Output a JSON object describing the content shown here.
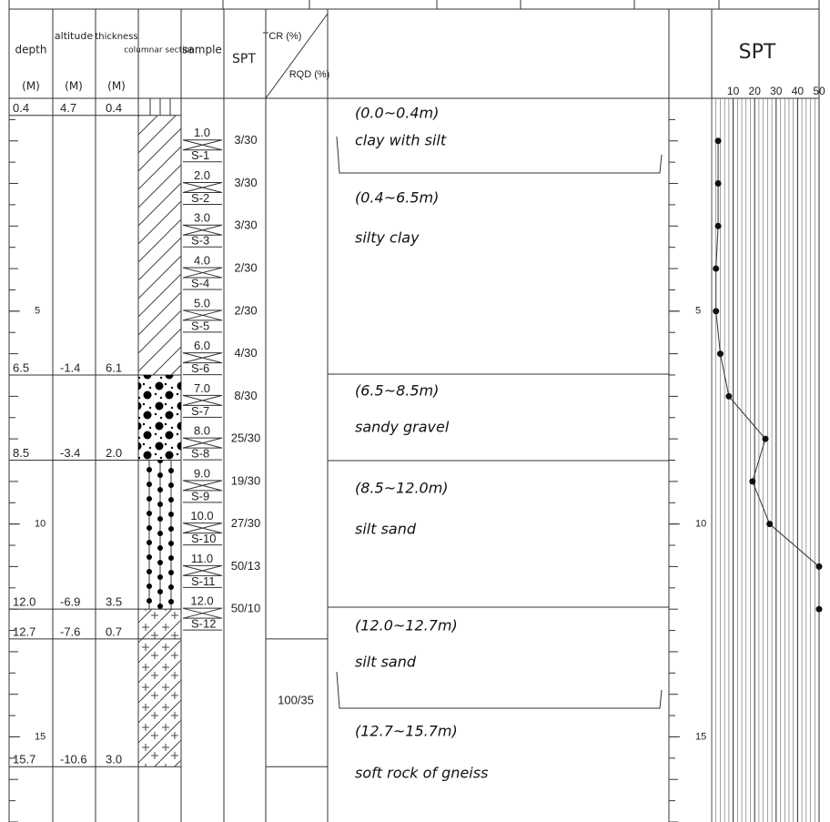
{
  "header": {
    "depth": "depth",
    "depth_unit": "(M)",
    "altitude": "altitude",
    "altitude_unit": "(M)",
    "thickness": "thickness",
    "thickness_unit": "(M)",
    "columnar": "columnar section",
    "sample": "sample",
    "spt": "SPT",
    "tcr": "TCR (%)",
    "rqd": "RQD (%)"
  },
  "depth_axis": {
    "ylim": [
      0,
      17
    ],
    "ticks": [
      5,
      10,
      15
    ]
  },
  "layers": [
    {
      "depth": "0.4",
      "altitude": "4.7",
      "thickness": "0.4",
      "description": [
        "(0.0~0.4m)",
        "clay with silt"
      ]
    },
    {
      "depth": "6.5",
      "altitude": "-1.4",
      "thickness": "6.1",
      "description": [
        "(0.4~6.5m)",
        "silty clay"
      ]
    },
    {
      "depth": "8.5",
      "altitude": "-3.4",
      "thickness": "2.0",
      "description": [
        "(6.5~8.5m)",
        "sandy gravel"
      ]
    },
    {
      "depth": "12.0",
      "altitude": "-6.9",
      "thickness": "3.5",
      "description": [
        "(8.5~12.0m)",
        "silt sand"
      ]
    },
    {
      "depth": "12.7",
      "altitude": "-7.6",
      "thickness": "0.7",
      "description": [
        "(12.0~12.7m)",
        "silt sand"
      ]
    },
    {
      "depth": "15.7",
      "altitude": "-10.6",
      "thickness": "3.0",
      "description": [
        "(12.7~15.7m)",
        "soft rock of gneiss"
      ]
    }
  ],
  "samples": [
    {
      "depth": "1.0",
      "id": "S-1",
      "spt": "3/30"
    },
    {
      "depth": "2.0",
      "id": "S-2",
      "spt": "3/30"
    },
    {
      "depth": "3.0",
      "id": "S-3",
      "spt": "3/30"
    },
    {
      "depth": "4.0",
      "id": "S-4",
      "spt": "2/30"
    },
    {
      "depth": "5.0",
      "id": "S-5",
      "spt": "2/30"
    },
    {
      "depth": "6.0",
      "id": "S-6",
      "spt": "4/30"
    },
    {
      "depth": "7.0",
      "id": "S-7",
      "spt": "8/30"
    },
    {
      "depth": "8.0",
      "id": "S-8",
      "spt": "25/30"
    },
    {
      "depth": "9.0",
      "id": "S-9",
      "spt": "19/30"
    },
    {
      "depth": "10.0",
      "id": "S-10",
      "spt": "27/30"
    },
    {
      "depth": "11.0",
      "id": "S-11",
      "spt": "50/13"
    },
    {
      "depth": "12.0",
      "id": "S-12",
      "spt": "50/10"
    }
  ],
  "tcr_rqd": "100/35",
  "spt_chart": {
    "type": "line",
    "title": "SPT",
    "xlim": [
      0,
      50
    ],
    "xticks": [
      10,
      20,
      30,
      40,
      50
    ],
    "values": [
      3,
      3,
      3,
      2,
      2,
      4,
      8,
      25,
      19,
      27,
      50,
      50
    ],
    "color": "#111"
  }
}
